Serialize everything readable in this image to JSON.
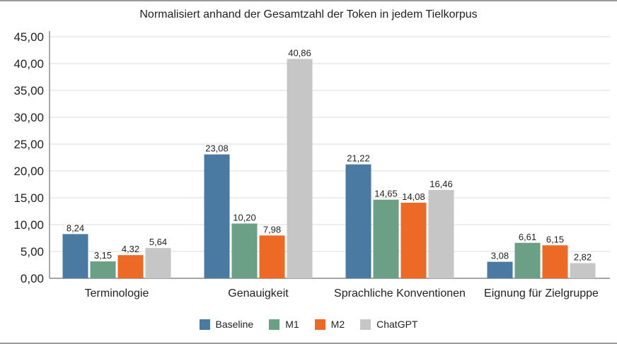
{
  "chart_data": {
    "type": "bar",
    "title": "Normalisiert anhand der Gesamtzahl der Token in jedem Tielkorpus",
    "categories": [
      "Terminologie",
      "Genauigkeit",
      "Sprachliche Konventionen",
      "Eignung für Zielgruppe"
    ],
    "series": [
      {
        "name": "Baseline",
        "color": "#4a7aa1",
        "values": [
          8.24,
          23.08,
          21.22,
          3.08
        ],
        "labels": [
          "8,24",
          "23,08",
          "21,22",
          "3,08"
        ]
      },
      {
        "name": "M1",
        "color": "#6b9f86",
        "values": [
          3.15,
          10.2,
          14.65,
          6.61
        ],
        "labels": [
          "3,15",
          "10,20",
          "14,65",
          "6,61"
        ]
      },
      {
        "name": "M2",
        "color": "#ec6a26",
        "values": [
          4.32,
          7.98,
          14.08,
          6.15
        ],
        "labels": [
          "4,32",
          "7,98",
          "14,08",
          "6,15"
        ]
      },
      {
        "name": "ChatGPT",
        "color": "#c6c6c6",
        "values": [
          5.64,
          40.86,
          16.46,
          2.82
        ],
        "labels": [
          "5,64",
          "40,86",
          "16,46",
          "2,82"
        ]
      }
    ],
    "ylim": [
      0,
      45
    ],
    "yticks": [
      "0,00",
      "5,00",
      "10,00",
      "15,00",
      "20,00",
      "25,00",
      "30,00",
      "35,00",
      "40,00",
      "45,00"
    ],
    "grid": true,
    "legend": "bottom"
  }
}
